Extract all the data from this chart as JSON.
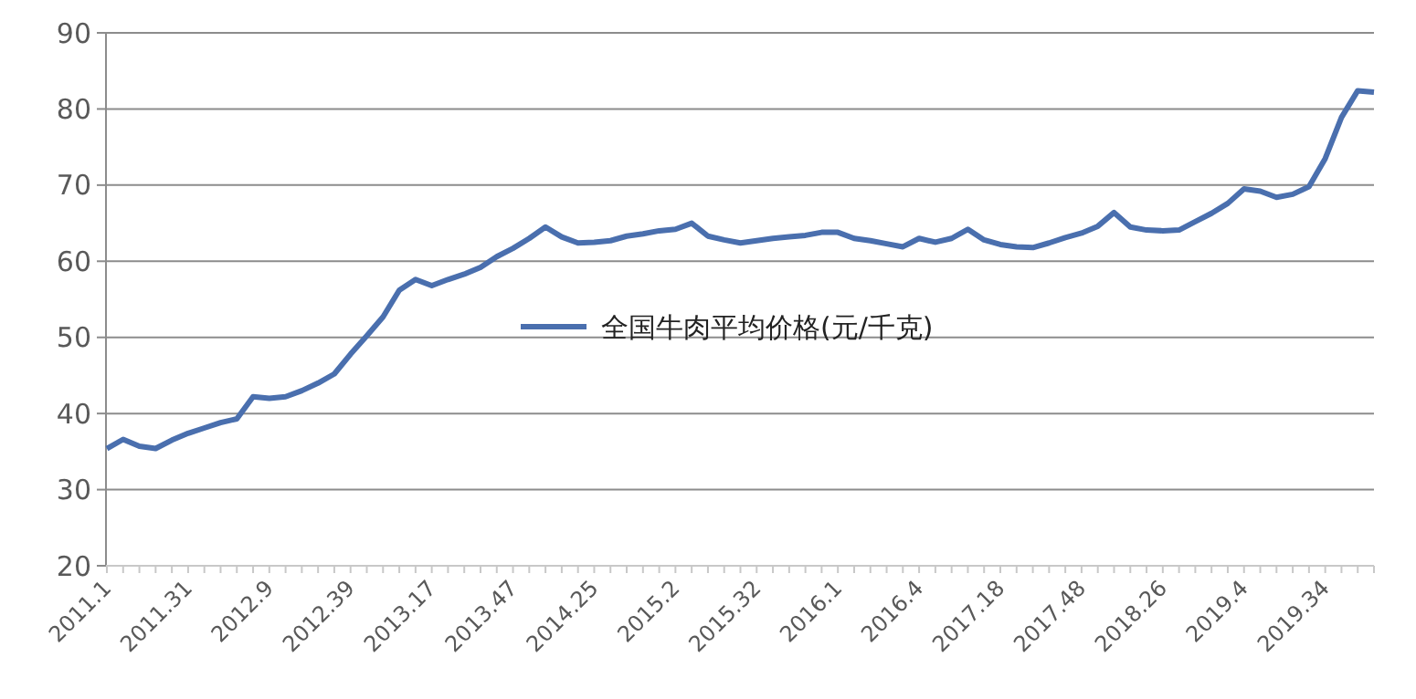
{
  "chart_data": {
    "type": "line",
    "categories": [
      "2011.1",
      null,
      null,
      null,
      null,
      "2011.31",
      null,
      null,
      null,
      null,
      "2012.9",
      null,
      null,
      null,
      null,
      "2012.39",
      null,
      null,
      null,
      null,
      "2013.17",
      null,
      null,
      null,
      null,
      "2013.47",
      null,
      null,
      null,
      null,
      "2014.25",
      null,
      null,
      null,
      null,
      "2015.2",
      null,
      null,
      null,
      null,
      "2015.32",
      null,
      null,
      null,
      null,
      "2016.1",
      null,
      null,
      null,
      null,
      "2016.4",
      null,
      null,
      null,
      null,
      "2017.18",
      null,
      null,
      null,
      null,
      "2017.48",
      null,
      null,
      null,
      null,
      "2018.26",
      null,
      null,
      null,
      null,
      "2019.4",
      null,
      null,
      null,
      null,
      "2019.34",
      null,
      null,
      null
    ],
    "series": [
      {
        "name": "全国牛肉平均价格(元/千克)",
        "color": "#4a6fae",
        "values": [
          35.4,
          36.6,
          35.7,
          35.4,
          36.5,
          37.4,
          38.1,
          38.8,
          39.3,
          42.2,
          42.0,
          42.2,
          43.0,
          44.0,
          45.2,
          47.8,
          50.2,
          52.7,
          56.2,
          57.6,
          56.8,
          57.6,
          58.3,
          59.2,
          60.6,
          61.7,
          63.0,
          64.5,
          63.2,
          62.4,
          62.5,
          62.7,
          63.3,
          63.6,
          64.0,
          64.2,
          65.0,
          63.3,
          62.8,
          62.4,
          62.7,
          63.0,
          63.2,
          63.4,
          63.8,
          63.8,
          63.0,
          62.7,
          62.3,
          61.9,
          63.0,
          62.5,
          63.0,
          64.2,
          62.8,
          62.2,
          61.9,
          61.8,
          62.4,
          63.1,
          63.7,
          64.6,
          66.4,
          64.5,
          64.1,
          64.0,
          64.1,
          65.2,
          66.3,
          67.6,
          69.5,
          69.2,
          68.4,
          68.8,
          69.8,
          73.5,
          78.9,
          82.4,
          82.2
        ]
      }
    ],
    "ylim": [
      20,
      90
    ],
    "yticks": [
      20,
      30,
      40,
      50,
      60,
      70,
      80,
      90
    ],
    "grid": "y",
    "legend": "center",
    "marker": "none",
    "line_style": "solid"
  }
}
